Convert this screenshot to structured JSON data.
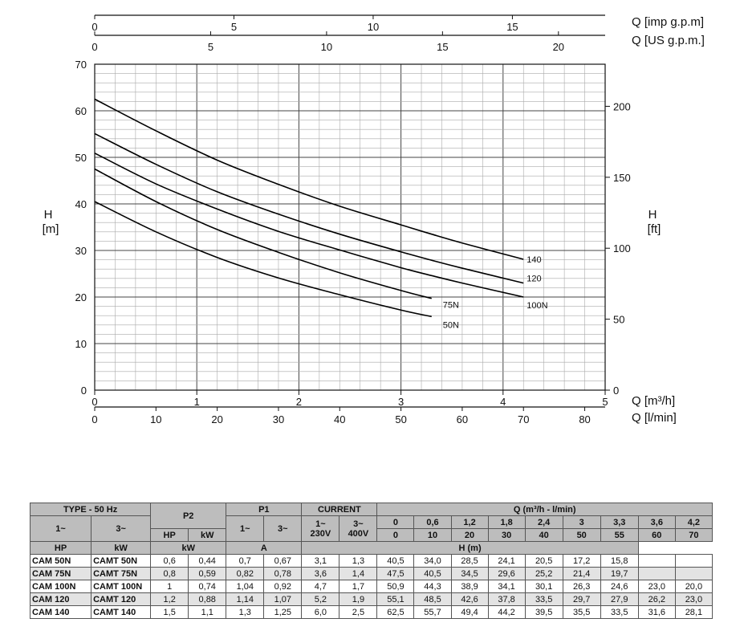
{
  "chart_data": {
    "type": "line",
    "xlabel": "Q [m³/h]",
    "xlabel_lmin": "Q [l/min]",
    "xlabel_us": "Q [US g.p.m.]",
    "xlabel_imp": "Q [imp g.p.m]",
    "ylabel": "H\n[m]",
    "ylabel_left_line1": "H",
    "ylabel_left_line2": "[m]",
    "ylabel_right_line1": "H",
    "ylabel_right_line2": "[ft]",
    "xlim": [
      0,
      5
    ],
    "ylim": [
      0,
      70
    ],
    "grid": true,
    "x_ticks_m3h": [
      "0",
      "1",
      "2",
      "3",
      "4",
      "5"
    ],
    "x_ticks_lmin": [
      "0",
      "10",
      "20",
      "30",
      "40",
      "50",
      "60",
      "70",
      "80"
    ],
    "x_ticks_us": [
      "0",
      "5",
      "10",
      "15",
      "20"
    ],
    "x_ticks_imp": [
      "0",
      "5",
      "10",
      "15"
    ],
    "y_ticks_m": [
      "0",
      "10",
      "20",
      "30",
      "40",
      "50",
      "60",
      "70"
    ],
    "y_ticks_ft": [
      "0",
      "50",
      "100",
      "150",
      "200"
    ],
    "series": [
      {
        "name": "50N",
        "x": [
          0,
          0.6,
          1.2,
          1.8,
          2.4,
          3.0,
          3.3
        ],
        "y": [
          40.5,
          34.0,
          28.5,
          24.1,
          20.5,
          17.2,
          15.8
        ]
      },
      {
        "name": "75N",
        "x": [
          0,
          0.6,
          1.2,
          1.8,
          2.4,
          3.0,
          3.3
        ],
        "y": [
          47.5,
          40.5,
          34.5,
          29.6,
          25.2,
          21.4,
          19.7
        ]
      },
      {
        "name": "100N",
        "x": [
          0,
          0.6,
          1.2,
          1.8,
          2.4,
          3.0,
          3.3,
          3.6,
          4.2
        ],
        "y": [
          50.9,
          44.3,
          38.9,
          34.1,
          30.1,
          26.3,
          24.6,
          23.0,
          20.0
        ]
      },
      {
        "name": "120",
        "x": [
          0,
          0.6,
          1.2,
          1.8,
          2.4,
          3.0,
          3.3,
          3.6,
          4.2
        ],
        "y": [
          55.1,
          48.5,
          42.6,
          37.8,
          33.5,
          29.7,
          27.9,
          26.2,
          23.0
        ]
      },
      {
        "name": "140",
        "x": [
          0,
          0.6,
          1.2,
          1.8,
          2.4,
          3.0,
          3.3,
          3.6,
          4.2
        ],
        "y": [
          62.5,
          55.7,
          49.4,
          44.2,
          39.5,
          35.5,
          33.5,
          31.6,
          28.1
        ]
      }
    ]
  },
  "table": {
    "h_type": "TYPE - 50 Hz",
    "h_p2": "P2",
    "h_p1": "P1",
    "h_current": "CURRENT",
    "h_q": "Q (m³/h - l/min)",
    "h_1ph": "1~",
    "h_3ph": "3~",
    "h_p1_1": "1~",
    "h_p1_3": "3~",
    "h_cur_1": "1~\n230V",
    "h_cur_1a": "1~",
    "h_cur_1b": "230V",
    "h_cur_3a": "3~",
    "h_cur_3b": "400V",
    "h_hp": "HP",
    "h_kw": "kW",
    "h_p1_kw": "kW",
    "h_a": "A",
    "h_hm": "H (m)",
    "q_m3h": [
      "0",
      "0,6",
      "1,2",
      "1,8",
      "2,4",
      "3",
      "3,3",
      "3,6",
      "4,2"
    ],
    "q_lmin": [
      "0",
      "10",
      "20",
      "30",
      "40",
      "50",
      "55",
      "60",
      "70"
    ],
    "rows": [
      {
        "m1": "CAM 50N",
        "m3": "CAMT 50N",
        "hp": "0,6",
        "kw": "0,44",
        "p1_1": "0,7",
        "p1_3": "0,67",
        "a1": "3,1",
        "a3": "1,3",
        "h": [
          "40,5",
          "34,0",
          "28,5",
          "24,1",
          "20,5",
          "17,2",
          "15,8",
          "",
          ""
        ]
      },
      {
        "m1": "CAM 75N",
        "m3": "CAMT 75N",
        "hp": "0,8",
        "kw": "0,59",
        "p1_1": "0,82",
        "p1_3": "0,78",
        "a1": "3,6",
        "a3": "1,4",
        "h": [
          "47,5",
          "40,5",
          "34,5",
          "29,6",
          "25,2",
          "21,4",
          "19,7",
          "",
          ""
        ]
      },
      {
        "m1": "CAM 100N",
        "m3": "CAMT 100N",
        "hp": "1",
        "kw": "0,74",
        "p1_1": "1,04",
        "p1_3": "0,92",
        "a1": "4,7",
        "a3": "1,7",
        "h": [
          "50,9",
          "44,3",
          "38,9",
          "34,1",
          "30,1",
          "26,3",
          "24,6",
          "23,0",
          "20,0"
        ]
      },
      {
        "m1": "CAM 120",
        "m3": "CAMT 120",
        "hp": "1,2",
        "kw": "0,88",
        "p1_1": "1,14",
        "p1_3": "1,07",
        "a1": "5,2",
        "a3": "1,9",
        "h": [
          "55,1",
          "48,5",
          "42,6",
          "37,8",
          "33,5",
          "29,7",
          "27,9",
          "26,2",
          "23,0"
        ]
      },
      {
        "m1": "CAM 140",
        "m3": "CAMT 140",
        "hp": "1,5",
        "kw": "1,1",
        "p1_1": "1,3",
        "p1_3": "1,25",
        "a1": "6,0",
        "a3": "2,5",
        "h": [
          "62,5",
          "55,7",
          "49,4",
          "44,2",
          "39,5",
          "35,5",
          "33,5",
          "31,6",
          "28,1"
        ]
      }
    ]
  }
}
